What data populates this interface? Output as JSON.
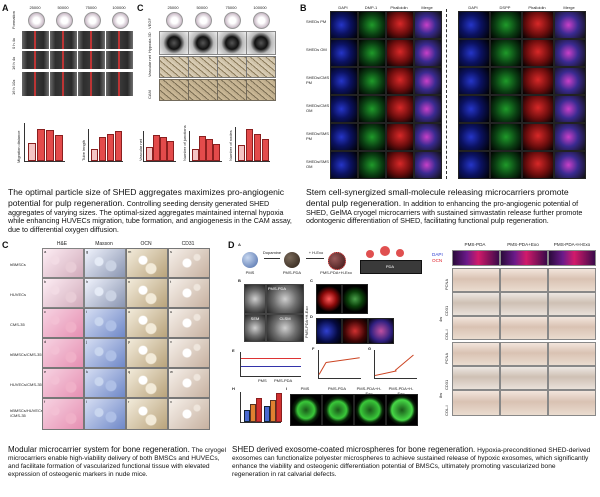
{
  "panelA": {
    "label": "A",
    "col_headers": [
      "25000",
      "50000",
      "75000",
      "100000"
    ],
    "row_labels": [
      "Formation",
      "0 h 4x",
      "16 h 4x",
      "16 h 10x"
    ],
    "charts": [
      "Migration distance",
      "Tube length",
      "Total tube length",
      "Number of junctions",
      "Number of nodes"
    ]
  },
  "panelC1": {
    "label": "C",
    "col_headers": [
      "25000",
      "50000",
      "75000",
      "100000"
    ],
    "row_labels": [
      "VEGF",
      "Hypoxia 3D",
      "Vascular net",
      "CAM"
    ]
  },
  "panelB": {
    "label": "B",
    "left_cols": [
      "DAPI",
      "DMP-1",
      "Phalloidin",
      "Merge"
    ],
    "right_cols": [
      "DAPI",
      "DSPP",
      "Phalloidin",
      "Merge"
    ],
    "rows": [
      "SHEDs PM",
      "SHEDs OM",
      "SHEDs/CMS PM",
      "SHEDs/CMS OM",
      "SHEDs/SMS PM",
      "SHEDs/SMS OM"
    ]
  },
  "caption1": {
    "title": "The optimal particle size of SHED aggregates maximizes pro-angiogenic potential for pulp regeneration.",
    "body": "Controlling seeding density generated SHED aggregates of varying sizes. The optimal-sized aggregates maintained internal hypoxia while enhancing HUVECs migration, tube formation, and angiogenesis in the CAM assay, due to differential oxygen diffusion."
  },
  "caption2": {
    "title": "Stem cell-synergized small-molecule releasing microcarriers promote dental pulp regeneration.",
    "body": "In addition to enhancing the pro-angiogenic potential of SHED, GelMA cryogel microcarriers with sustained simvastatin release further promote odontogenic differentiation of SHED, facilitating functional pulp regeneration."
  },
  "panelC2": {
    "label": "C",
    "cols": [
      "H&E",
      "Masson",
      "OCN",
      "CD31"
    ],
    "rows": [
      "hBMSCs",
      "HUVECs",
      "CMS-35",
      "hBMSCs/CMS-35",
      "HUVECs/CMS-35",
      "hBMSCs/HUVECs /CMS-35"
    ],
    "cell_letters": [
      [
        "a",
        "g",
        "m",
        "s"
      ],
      [
        "b",
        "h",
        "n",
        "t"
      ],
      [
        "c",
        "i",
        "o",
        "u"
      ],
      [
        "d",
        "j",
        "p",
        "v"
      ],
      [
        "e",
        "k",
        "q",
        "w"
      ],
      [
        "f",
        "l",
        "r",
        "x"
      ]
    ]
  },
  "panelD": {
    "label": "D",
    "scheme": [
      "PMS",
      "Dopamine",
      "PMS-PDA",
      "+ H-Exo",
      "PMS-PDA+H-Exo",
      "PDA"
    ],
    "sub": [
      "A",
      "B",
      "C",
      "D",
      "E",
      "F",
      "G",
      "H",
      "I"
    ],
    "sem_labels": [
      "SEM",
      "PMS-PDA",
      "CLSM",
      "PMS-PDA+H-Exo"
    ],
    "plot_labels": [
      "PMS",
      "PMS-PDA"
    ],
    "group_labels": [
      "PMS",
      "PMS-PDA",
      "PMS-PDA+H-Exo",
      "PMS-PDA+H-Exo"
    ]
  },
  "panelIHC": {
    "cols": [
      "PMS-PDA",
      "PMS-PDA+Exo",
      "PMS-PDA+H-Exo"
    ],
    "legend": [
      "DAPI",
      "OCN"
    ],
    "rows_top": [
      "PCNA",
      "CD31",
      "COL-I"
    ],
    "rows_bottom": [
      "PCNA",
      "CD31",
      "COL-I"
    ],
    "side_labels": [
      "4w",
      "8w"
    ]
  },
  "caption3": {
    "title": "Modular microcarrier system for bone regeneration.",
    "body": "The cryogel microcarriers enable high-viability delivery of both BMSCs and HUVECs, and facilitate formation of vascularized functional tissue with elevated expression of osteogenic markers in nude mice."
  },
  "caption4": {
    "title": "SHED derived exosome-coated microspheres for bone regeneration.",
    "body": "Hypoxia-preconditioned SHED-derived exosomes can functionalize polyester microspheres to achieve sustained release of hypoxic exosomes, which significantly enhance the viability and osteogenic differentiation potential of BMSCs, ultimately promoting vascularized bone regeneration in rat calvarial defects."
  },
  "colors": {
    "bar": "#e34b4b",
    "bar_light": "#f4c4c4",
    "ocn": "#e0202a",
    "dapi": "#2a3ad0"
  }
}
